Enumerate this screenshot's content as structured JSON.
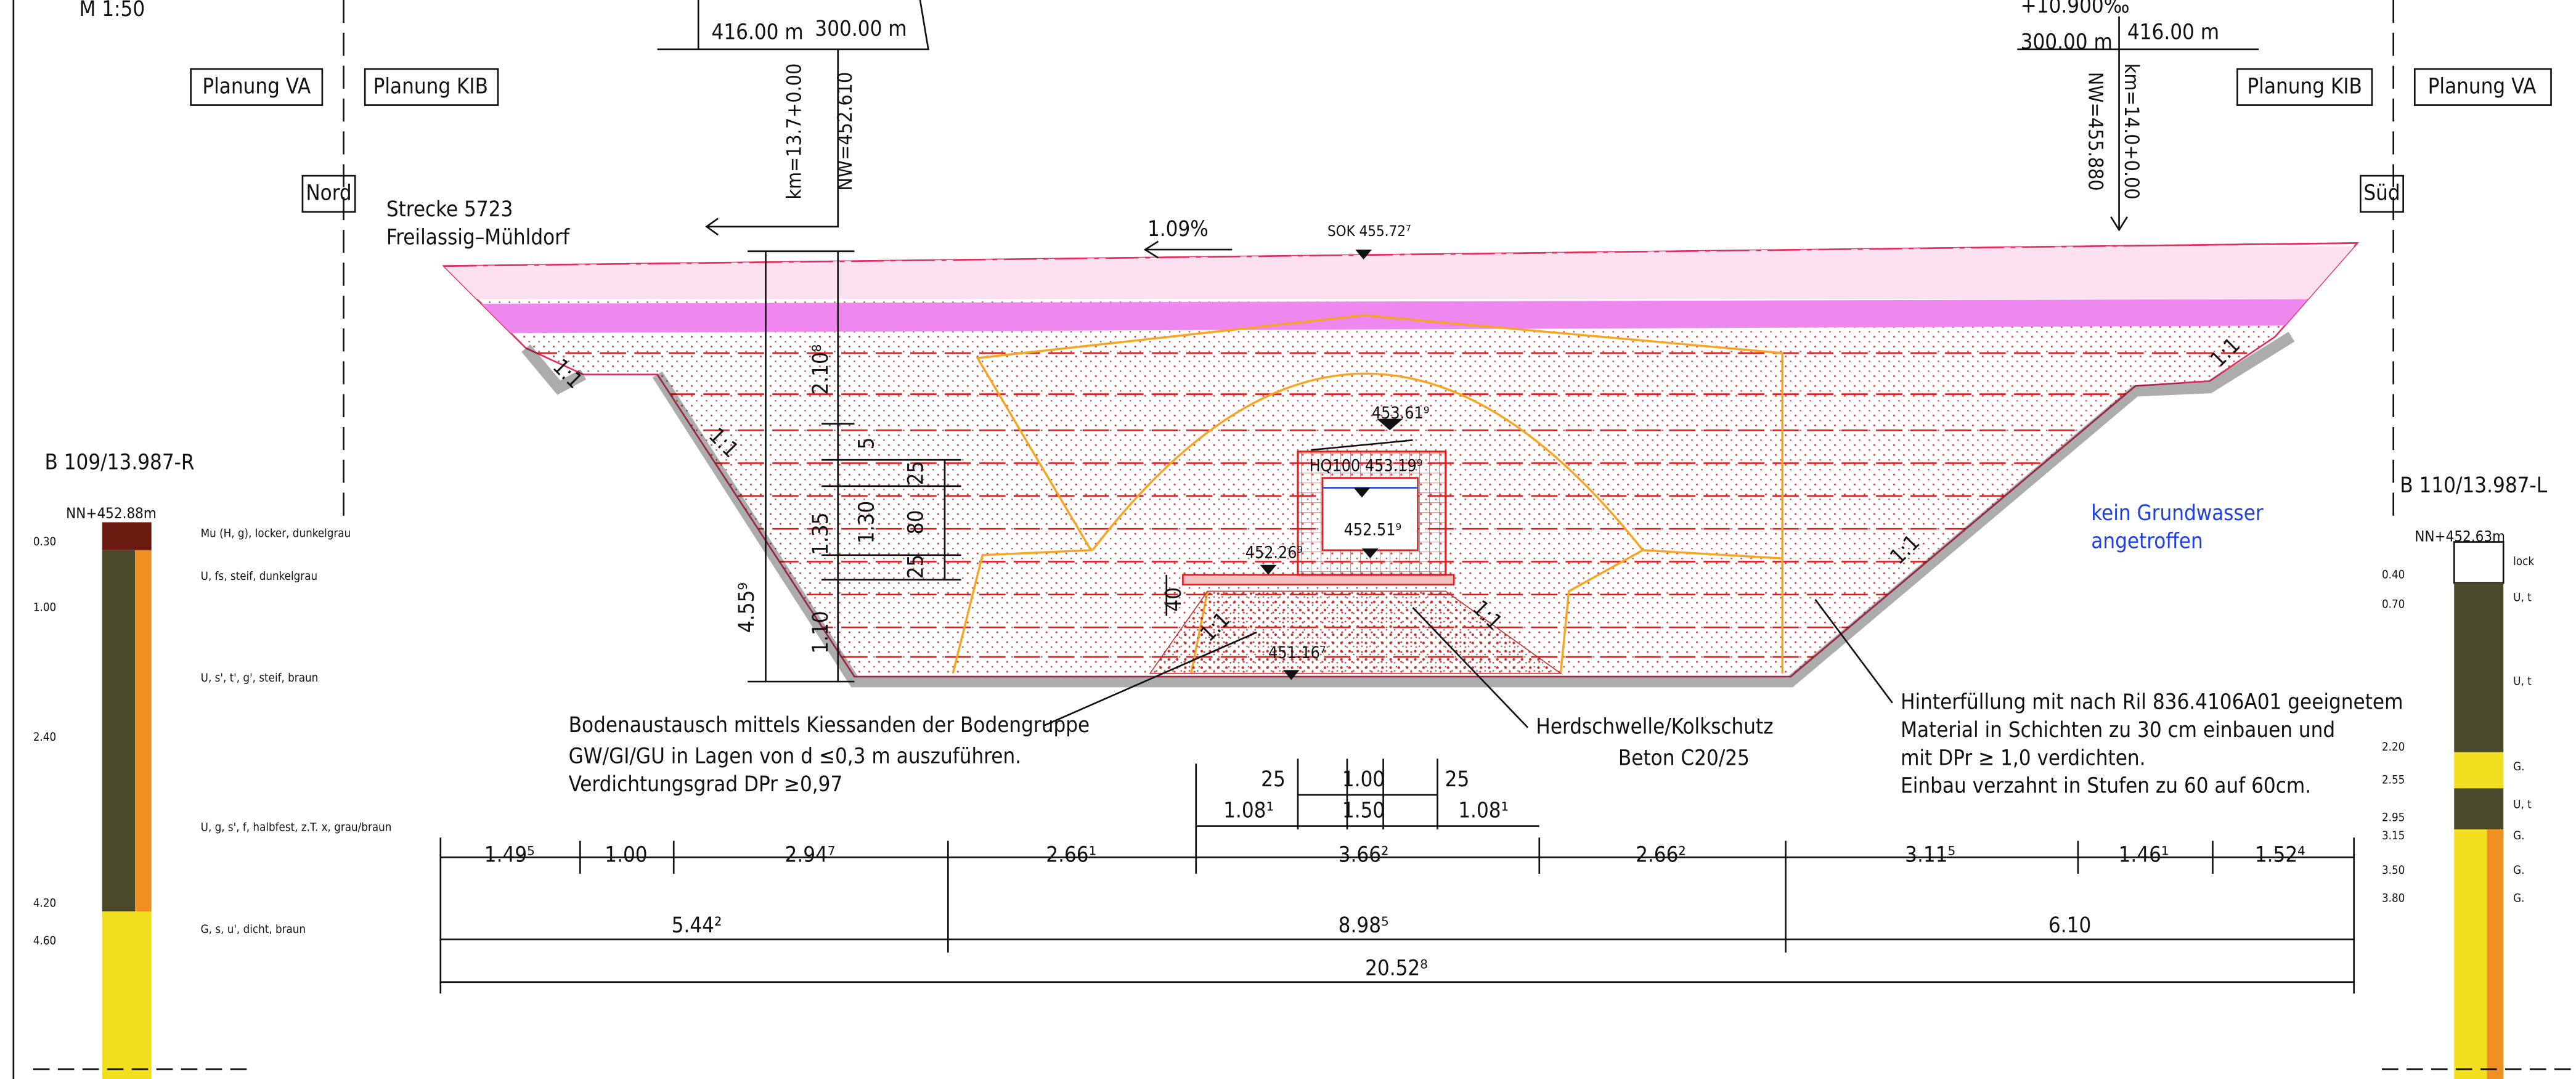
{
  "frame": {
    "scale": "M 1:50",
    "left_tags": [
      "Planung VA",
      "Planung KIB",
      "Nord"
    ],
    "right_tags": [
      "Planung KIB",
      "Planung VA",
      "Süd"
    ]
  },
  "alignment": {
    "line": "Strecke 5723",
    "route": "Freilassig–Mühldorf",
    "left": {
      "lengths": [
        "416.00 m",
        "300.00 m"
      ],
      "km": "km=13.7+0.00",
      "nw": "NW=452.610"
    },
    "right": {
      "grade": "+10.900‰",
      "lengths": [
        "300.00 m",
        "416.00 m"
      ],
      "km": "km=14.0+0.00",
      "nw": "NW=455.880"
    }
  },
  "section": {
    "gradient": "1.09%",
    "sok": "SOK 455.72⁷",
    "slopes": [
      "1:1",
      "1:1",
      "1:1",
      "1:1",
      "1:1",
      "1:1"
    ],
    "levels": [
      "453.61⁹",
      "HQ100 453.19⁹",
      "452.51⁹",
      "452.26⁹",
      "451.16⁷"
    ],
    "vertical_dims": [
      "4.55⁹",
      "2.10⁸",
      "1.35",
      "1.10",
      "5",
      "25",
      "1.30",
      "80",
      "25",
      "40"
    ]
  },
  "dimensions": {
    "upper": [
      "25",
      "1.00",
      "25"
    ],
    "middle": [
      "1.08¹",
      "1.50",
      "1.08¹"
    ],
    "row1": [
      "1.49⁵",
      "1.00",
      "2.94⁷",
      "2.66¹",
      "3.66²",
      "2.66²",
      "3.11⁵",
      "1.46¹",
      "1.52⁴"
    ],
    "row2": [
      "5.44²",
      "8.98⁵",
      "6.10"
    ],
    "total": "20.52⁸"
  },
  "notes": {
    "soil_exchange": [
      "Bodenaustausch mittels Kiessanden der Bodengruppe",
      "GW/GI/GU in Lagen von d ≤0,3 m auszuführen.",
      "Verdichtungsgrad DPr ≥0,97"
    ],
    "sill": [
      "Herdschwelle/Kolkschutz",
      "Beton C20/25"
    ],
    "backfill": [
      "Hinterfüllung mit nach Ril 836.4106A01 geeignetem",
      "Material in Schichten zu 30 cm einbauen und",
      "mit DPr ≥ 1,0 verdichten.",
      "Einbau verzahnt in Stufen zu 60 auf 60cm."
    ],
    "groundwater": [
      "kein Grundwasser",
      "angetroffen"
    ]
  },
  "boreholes": [
    {
      "name": "B 109/13.987-R",
      "nn": "NN+452.88m",
      "depths": [
        "0.30",
        "1.00",
        "2.40",
        "4.20",
        "4.60"
      ],
      "layers": [
        "Mu (H, g), locker, dunkelgrau",
        "U, fs, steif, dunkelgrau",
        "U, s', t', g', steif, braun",
        "U, g, s', f, halbfest, z.T. x, grau/braun",
        "G, s, u', dicht, braun"
      ]
    },
    {
      "name": "B 110/13.987-L",
      "nn": "NN+452.63m",
      "depths": [
        "0.40",
        "0.70",
        "2.20",
        "2.55",
        "2.95",
        "3.15",
        "3.50",
        "3.80"
      ],
      "layers": [
        "lock",
        "U, t",
        "U, t",
        "G.",
        "U, t",
        "G.",
        "G.",
        "G."
      ]
    }
  ]
}
